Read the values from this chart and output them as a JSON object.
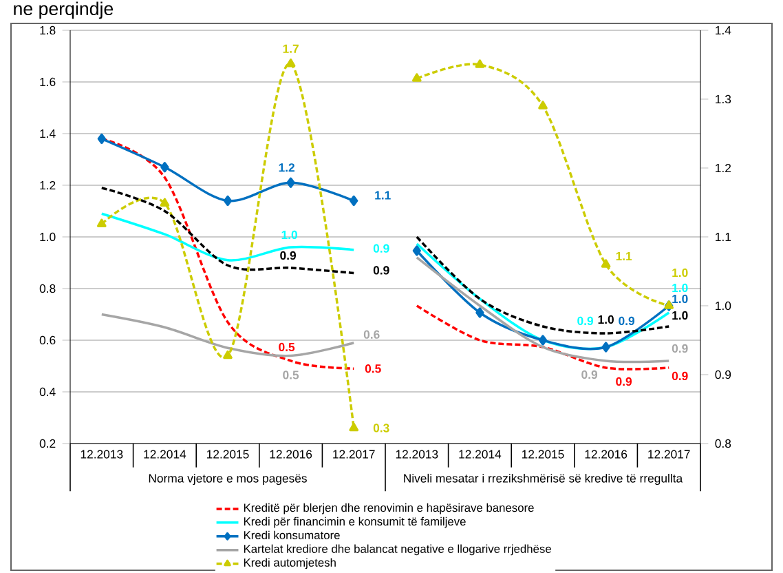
{
  "chart_data": {
    "type": "line",
    "title": "ne perqindje",
    "categories": [
      "12.2013",
      "12.2014",
      "12.2015",
      "12.2016",
      "12.2017",
      "12.2013",
      "12.2014",
      "12.2015",
      "12.2016",
      "12.2017"
    ],
    "annotations": [
      "Norma vjetore e mos pagesës",
      "Niveli mesatar i rrezikshmërisë së kredive të rregullta"
    ],
    "ylim": [
      0.2,
      1.8
    ],
    "yticks": [
      0.2,
      0.4,
      0.6,
      0.8,
      {
        "value": 1,
        "label": "1.0"
      },
      1.2,
      1.4,
      1.6,
      1.8
    ],
    "y2lim": [
      0.8,
      1.4
    ],
    "y2ticks": [
      0.8,
      0.9,
      {
        "value": 1,
        "label": "1.0"
      },
      1.1,
      1.2,
      1.3,
      1.4
    ],
    "grid": "y",
    "legend": "bottom",
    "series": [
      {
        "name": "Kreditë për blerjen dhe renovimin e hapësirave banesore",
        "color": "#ff0000",
        "line_style": "dashed",
        "values": [
          1.38,
          1.23,
          0.67,
          0.52,
          0.49,
          null,
          null,
          null,
          null,
          null
        ],
        "value_labels": [
          null,
          null,
          null,
          "0.5",
          "0.5",
          null,
          null,
          null,
          null,
          null
        ]
      },
      {
        "name": "Kredi për financimin e konsumit të familjeve",
        "color": "#00ffff",
        "line_style": "solid",
        "values": [
          1.09,
          1.01,
          0.91,
          0.96,
          0.95,
          null,
          null,
          null,
          null,
          null
        ],
        "value_labels": [
          null,
          null,
          null,
          "1.0",
          "0.9",
          null,
          null,
          null,
          null,
          null
        ]
      },
      {
        "name": "Kredi konsumatore",
        "color": "#0070c0",
        "line_style": "solid",
        "marker": "diamond",
        "values": [
          1.38,
          1.27,
          1.14,
          1.21,
          1.14,
          null,
          null,
          null,
          null,
          null
        ],
        "value_labels": [
          null,
          null,
          null,
          "1.2",
          "1.1",
          null,
          null,
          null,
          null,
          null
        ]
      },
      {
        "name": "Kartelat krediore dhe balancat negative e llogarive rrjedhëse",
        "color": "#a6a6a6",
        "line_style": "solid",
        "values": [
          0.7,
          0.65,
          0.57,
          0.54,
          0.59,
          null,
          null,
          null,
          null,
          null
        ],
        "value_labels": [
          null,
          null,
          null,
          "0.5",
          "0.6",
          null,
          null,
          null,
          null,
          null
        ]
      },
      {
        "name": "Kredi automjetesh",
        "color": "#cccc00",
        "line_style": "dashed",
        "marker": "triangle",
        "values": [
          1.05,
          1.13,
          0.54,
          1.67,
          0.26,
          null,
          null,
          null,
          null,
          null
        ],
        "value_labels": [
          null,
          null,
          null,
          "1.7",
          "0.3",
          null,
          null,
          null,
          null,
          null
        ]
      },
      {
        "color": "#000000",
        "line_style": "dashed",
        "values": [
          1.19,
          1.1,
          0.89,
          0.88,
          0.86,
          null,
          null,
          null,
          null,
          null
        ],
        "value_labels": [
          null,
          null,
          null,
          "0.9",
          "0.9",
          null,
          null,
          null,
          null,
          null
        ]
      },
      {
        "color": "#ff0000",
        "line_style": "dashed",
        "axis": "y2",
        "values": [
          null,
          null,
          null,
          null,
          null,
          1.0,
          0.95,
          0.94,
          0.91,
          0.91
        ],
        "value_labels": [
          null,
          null,
          null,
          null,
          null,
          null,
          null,
          null,
          "0.9",
          "0.9"
        ]
      },
      {
        "color": "#00ffff",
        "line_style": "solid",
        "axis": "y2",
        "values": [
          null,
          null,
          null,
          null,
          null,
          1.09,
          1.01,
          0.95,
          0.94,
          0.99
        ],
        "value_labels": [
          null,
          null,
          null,
          null,
          null,
          null,
          null,
          null,
          "0.9",
          "1.0"
        ]
      },
      {
        "color": "#0070c0",
        "line_style": "solid",
        "marker": "diamond",
        "axis": "y2",
        "values": [
          null,
          null,
          null,
          null,
          null,
          1.08,
          0.99,
          0.95,
          0.94,
          1.0
        ],
        "value_labels": [
          null,
          null,
          null,
          null,
          null,
          null,
          null,
          null,
          "0.9",
          "1.0"
        ]
      },
      {
        "color": "#a6a6a6",
        "line_style": "solid",
        "axis": "y2",
        "values": [
          null,
          null,
          null,
          null,
          null,
          1.07,
          1.0,
          0.94,
          0.92,
          0.92
        ],
        "value_labels": [
          null,
          null,
          null,
          null,
          null,
          null,
          null,
          null,
          "0.9",
          "0.9"
        ]
      },
      {
        "color": "#cccc00",
        "line_style": "dashed",
        "marker": "triangle",
        "axis": "y2",
        "values": [
          null,
          null,
          null,
          null,
          null,
          1.33,
          1.35,
          1.29,
          1.06,
          1.0
        ],
        "value_labels": [
          null,
          null,
          null,
          null,
          null,
          null,
          null,
          null,
          "1.1",
          "1.0"
        ]
      },
      {
        "color": "#000000",
        "line_style": "dashed",
        "axis": "y2",
        "values": [
          null,
          null,
          null,
          null,
          null,
          1.1,
          1.01,
          0.97,
          0.96,
          0.97
        ],
        "value_labels": [
          null,
          null,
          null,
          null,
          null,
          null,
          null,
          null,
          "1.0",
          "1.0"
        ]
      }
    ]
  }
}
